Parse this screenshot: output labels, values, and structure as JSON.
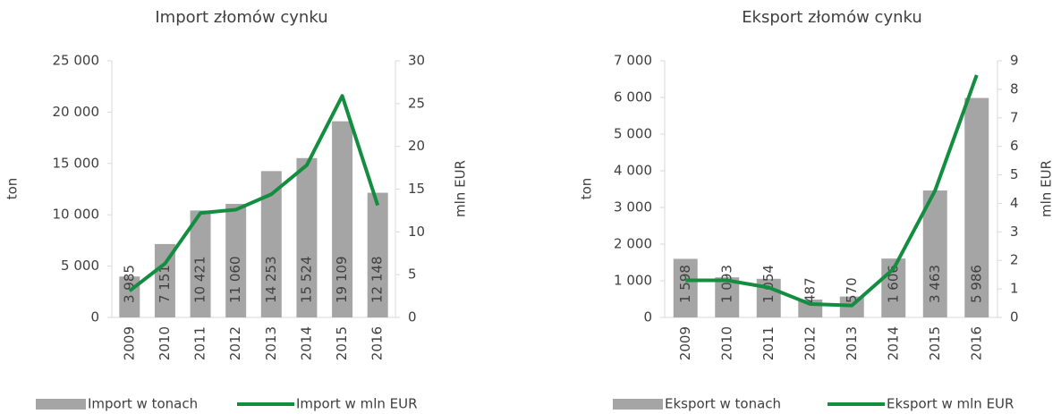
{
  "chart_data": [
    {
      "type": "bar",
      "title": "Import złomów cynku",
      "y_label": "ton",
      "y2_label": "mln EUR",
      "categories": [
        "2009",
        "2010",
        "2011",
        "2012",
        "2013",
        "2014",
        "2015",
        "2016"
      ],
      "series": [
        {
          "name": "Import w tonach",
          "type": "bar",
          "color": "#a5a5a5",
          "axis": "y",
          "values": [
            3985,
            7151,
            10421,
            11060,
            14253,
            15524,
            19109,
            12148
          ],
          "value_labels": [
            "3 985",
            "7 151",
            "10 421",
            "11 060",
            "14 253",
            "15 524",
            "19 109",
            "12 148"
          ]
        },
        {
          "name": "Import w mln EUR",
          "type": "line",
          "color": "#138d3f",
          "axis": "y2",
          "values": [
            3.1,
            6.3,
            12.2,
            12.6,
            14.4,
            17.8,
            25.9,
            13.1
          ]
        }
      ],
      "ylim": [
        0,
        25000
      ],
      "yticks": [
        {
          "value": 0,
          "label": "0"
        },
        {
          "value": 5000,
          "label": "5 000"
        },
        {
          "value": 10000,
          "label": "10 000"
        },
        {
          "value": 15000,
          "label": "15 000"
        },
        {
          "value": 20000,
          "label": "20 000"
        },
        {
          "value": 25000,
          "label": "25 000"
        }
      ],
      "y2lim": [
        0,
        30
      ],
      "y2ticks": [
        0,
        5,
        10,
        15,
        20,
        25,
        30
      ],
      "legend": "bottom"
    },
    {
      "type": "bar",
      "title": "Eksport złomów cynku",
      "y_label": "ton",
      "y2_label": "mln EUR",
      "categories": [
        "2009",
        "2010",
        "2011",
        "2012",
        "2013",
        "2014",
        "2015",
        "2016"
      ],
      "series": [
        {
          "name": "Eksport w tonach",
          "type": "bar",
          "color": "#a5a5a5",
          "axis": "y",
          "values": [
            1598,
            1093,
            1054,
            487,
            570,
            1606,
            3463,
            5986
          ],
          "value_labels": [
            "1 598",
            "1 093",
            "1 054",
            "487",
            "570",
            "1 606",
            "3 463",
            "5 986"
          ]
        },
        {
          "name": "Eksport w mln EUR",
          "type": "line",
          "color": "#138d3f",
          "axis": "y2",
          "values": [
            1.3,
            1.3,
            1.05,
            0.47,
            0.42,
            1.7,
            4.45,
            8.5
          ]
        }
      ],
      "ylim": [
        0,
        7000
      ],
      "yticks": [
        {
          "value": 0,
          "label": "0"
        },
        {
          "value": 1000,
          "label": "1 000"
        },
        {
          "value": 2000,
          "label": "2 000"
        },
        {
          "value": 3000,
          "label": "3 000"
        },
        {
          "value": 4000,
          "label": "4 000"
        },
        {
          "value": 5000,
          "label": "5 000"
        },
        {
          "value": 6000,
          "label": "6 000"
        },
        {
          "value": 7000,
          "label": "7 000"
        }
      ],
      "y2lim": [
        0,
        9
      ],
      "y2ticks": [
        0,
        1,
        2,
        3,
        4,
        5,
        6,
        7,
        8,
        9
      ],
      "legend": "bottom"
    }
  ]
}
